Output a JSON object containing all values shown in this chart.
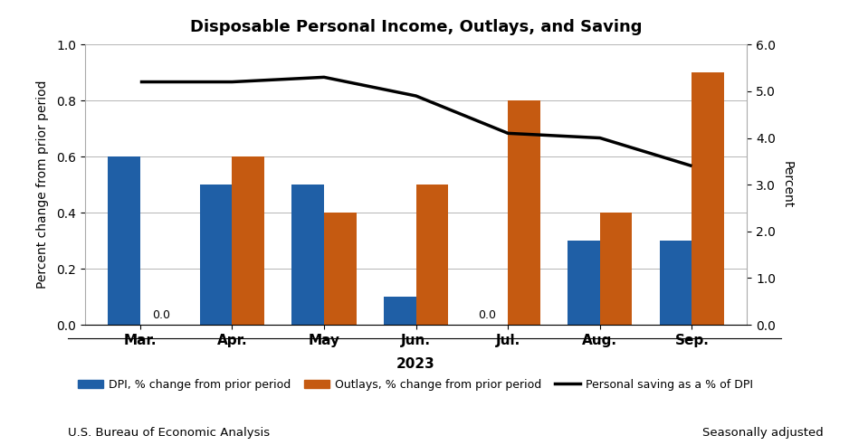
{
  "title": "Disposable Personal Income, Outlays, and Saving",
  "categories": [
    "Mar.",
    "Apr.",
    "May",
    "Jun.",
    "Jul.",
    "Aug.",
    "Sep."
  ],
  "xlabel": "2023",
  "ylabel_left": "Percent change from prior period",
  "ylabel_right": "Percent",
  "dpi_values": [
    0.6,
    0.5,
    0.5,
    0.1,
    0.0,
    0.3,
    0.3
  ],
  "outlays_values": [
    0.0,
    0.6,
    0.4,
    0.5,
    0.8,
    0.4,
    0.9
  ],
  "saving_values": [
    5.2,
    5.2,
    5.3,
    4.9,
    4.1,
    4.0,
    3.4
  ],
  "dpi_color": "#1f5fa6",
  "outlays_color": "#c55a11",
  "saving_color": "#000000",
  "ylim_left": [
    0.0,
    1.0
  ],
  "ylim_right": [
    0.0,
    6.0
  ],
  "yticks_left": [
    0.0,
    0.2,
    0.4,
    0.6,
    0.8,
    1.0
  ],
  "yticks_right": [
    0.0,
    1.0,
    2.0,
    3.0,
    4.0,
    5.0,
    6.0
  ],
  "legend_labels": [
    "DPI, % change from prior period",
    "Outlays, % change from prior period",
    "Personal saving as a % of DPI"
  ],
  "footnote_left": "U.S. Bureau of Economic Analysis",
  "footnote_right": "Seasonally adjusted",
  "bar_width": 0.35,
  "annotate_zero_dpi_idx": 4,
  "annotate_zero_outlays_idx": 0,
  "grid_color": "#aaaaaa",
  "spine_color": "#aaaaaa"
}
